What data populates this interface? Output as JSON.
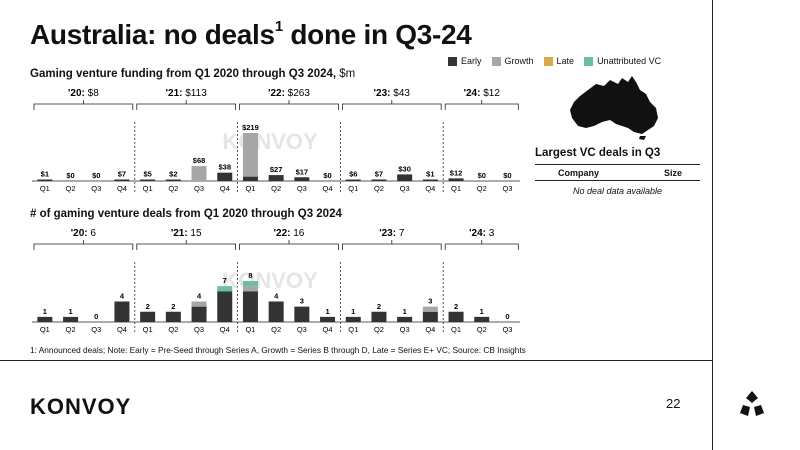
{
  "title": "Australia: no deals",
  "title_sup": "1",
  "title_end": " done in Q3-24",
  "legend": [
    {
      "label": "Early",
      "color": "#333333"
    },
    {
      "label": "Growth",
      "color": "#a6a6a6"
    },
    {
      "label": "Late",
      "color": "#d9a84a"
    },
    {
      "label": "Unattributed VC",
      "color": "#6bbf9c"
    }
  ],
  "funding_subtitle": "Gaming venture funding from Q1 2020 through Q3 2024,",
  "funding_unit": " $m",
  "deals_subtitle": "# of gaming venture deals from Q1 2020 through Q3 2024",
  "watermark": "KONVOY",
  "chart_data": [
    {
      "type": "bar",
      "title": "Gaming venture funding from Q1 2020 through Q3 2024, $m",
      "categories": [
        "Q1",
        "Q2",
        "Q3",
        "Q4",
        "Q1",
        "Q2",
        "Q3",
        "Q4",
        "Q1",
        "Q2",
        "Q3",
        "Q4",
        "Q1",
        "Q2",
        "Q3",
        "Q4",
        "Q1",
        "Q2",
        "Q3"
      ],
      "value_labels": [
        "$1",
        "$0",
        "$0",
        "$7",
        "$5",
        "$2",
        "$68",
        "$38",
        "$219",
        "$27",
        "$17",
        "$0",
        "$6",
        "$7",
        "$30",
        "$1",
        "$12",
        "$0",
        "$0"
      ],
      "series": [
        {
          "name": "Early",
          "values": [
            1,
            0,
            0,
            7,
            5,
            2,
            0,
            38,
            20,
            27,
            17,
            0,
            6,
            7,
            30,
            1,
            12,
            0,
            0
          ]
        },
        {
          "name": "Growth",
          "values": [
            0,
            0,
            0,
            0,
            0,
            0,
            68,
            0,
            199,
            0,
            0,
            0,
            0,
            0,
            0,
            0,
            0,
            0,
            0
          ]
        },
        {
          "name": "Late",
          "values": [
            0,
            0,
            0,
            0,
            0,
            0,
            0,
            0,
            0,
            0,
            0,
            0,
            0,
            0,
            0,
            0,
            0,
            0,
            0
          ]
        },
        {
          "name": "Unattributed VC",
          "values": [
            0,
            0,
            0,
            0,
            0,
            0,
            0,
            0,
            0,
            0,
            0,
            0,
            0,
            0,
            0,
            0,
            0,
            0,
            0
          ]
        }
      ],
      "groups": [
        {
          "year": "'20:",
          "total": "$8"
        },
        {
          "year": "'21:",
          "total": "$113"
        },
        {
          "year": "'22:",
          "total": "$263"
        },
        {
          "year": "'23:",
          "total": "$43"
        },
        {
          "year": "'24:",
          "total": "$12"
        }
      ],
      "ylim": [
        0,
        219
      ]
    },
    {
      "type": "bar",
      "title": "# of gaming venture deals from Q1 2020 through Q3 2024",
      "categories": [
        "Q1",
        "Q2",
        "Q3",
        "Q4",
        "Q1",
        "Q2",
        "Q3",
        "Q4",
        "Q1",
        "Q2",
        "Q3",
        "Q4",
        "Q1",
        "Q2",
        "Q3",
        "Q4",
        "Q1",
        "Q2",
        "Q3"
      ],
      "value_labels": [
        "1",
        "1",
        "0",
        "4",
        "2",
        "2",
        "4",
        "7",
        "8",
        "4",
        "3",
        "1",
        "1",
        "2",
        "1",
        "3",
        "2",
        "1",
        "0"
      ],
      "series": [
        {
          "name": "Early",
          "values": [
            1,
            1,
            0,
            4,
            2,
            2,
            3,
            6,
            6,
            4,
            3,
            1,
            1,
            2,
            1,
            2,
            2,
            1,
            0
          ]
        },
        {
          "name": "Growth",
          "values": [
            0,
            0,
            0,
            0,
            0,
            0,
            1,
            0,
            1,
            0,
            0,
            0,
            0,
            0,
            0,
            1,
            0,
            0,
            0
          ]
        },
        {
          "name": "Late",
          "values": [
            0,
            0,
            0,
            0,
            0,
            0,
            0,
            0,
            0,
            0,
            0,
            0,
            0,
            0,
            0,
            0,
            0,
            0,
            0
          ]
        },
        {
          "name": "Unattributed VC",
          "values": [
            0,
            0,
            0,
            0,
            0,
            0,
            0,
            1,
            1,
            0,
            0,
            0,
            0,
            0,
            0,
            0,
            0,
            0,
            0
          ]
        }
      ],
      "groups": [
        {
          "year": "'20:",
          "total": "6"
        },
        {
          "year": "'21:",
          "total": "15"
        },
        {
          "year": "'22:",
          "total": "16"
        },
        {
          "year": "'23:",
          "total": "7"
        },
        {
          "year": "'24:",
          "total": "3"
        }
      ],
      "ylim": [
        0,
        8
      ]
    }
  ],
  "vc_deals": {
    "title": "Largest VC deals in Q3",
    "col_company": "Company",
    "col_size": "Size",
    "empty": "No deal data available"
  },
  "footnote": "1: Announced deals; Note: Early = Pre-Seed through Series A, Growth = Series B through D, Late = Series E+ VC; Source: CB Insights",
  "brand": "KONVOY",
  "page_number": "22"
}
